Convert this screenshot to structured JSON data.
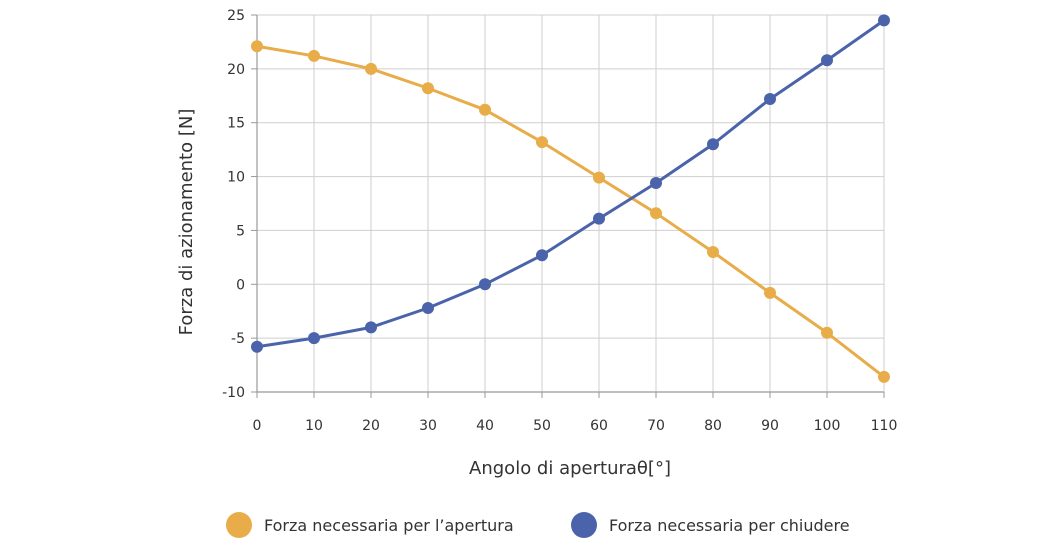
{
  "chart_data": {
    "type": "line",
    "title": "",
    "xlabel": "Angolo di aperturaθ[°]",
    "ylabel": "Forza di azionamento [N]",
    "x": [
      0,
      10,
      20,
      30,
      40,
      50,
      60,
      70,
      80,
      90,
      100,
      110
    ],
    "x_ticks": [
      "0",
      "10",
      "20",
      "30",
      "40",
      "50",
      "60",
      "70",
      "80",
      "90",
      "100",
      "110"
    ],
    "y_ticks": [
      "25",
      "20",
      "15",
      "10",
      "5",
      "0",
      "-5",
      "-10"
    ],
    "xlim": [
      0,
      110
    ],
    "ylim": [
      -10,
      25
    ],
    "grid": true,
    "legend_position": "bottom",
    "series": [
      {
        "name": "Forza necessaria per l’apertura",
        "color": "#E8AC48",
        "values": [
          22.1,
          21.2,
          20.0,
          18.2,
          16.2,
          13.2,
          9.9,
          6.6,
          3.0,
          -0.8,
          -4.5,
          -8.6
        ]
      },
      {
        "name": "Forza necessaria per chiudere",
        "color": "#4A63AA",
        "values": [
          -5.8,
          -5.0,
          -4.0,
          -2.2,
          0.0,
          2.7,
          6.1,
          9.4,
          13.0,
          17.2,
          20.8,
          24.5
        ]
      }
    ]
  }
}
